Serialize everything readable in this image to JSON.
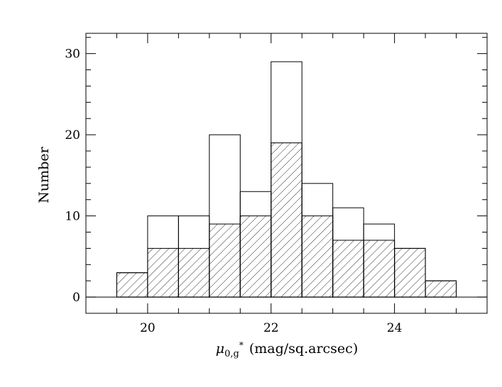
{
  "chart_data": {
    "type": "bar",
    "title": "",
    "ylabel": "Number",
    "xlabel": {
      "symbol": "μ",
      "subscript": "0,g",
      "superscript": "*",
      "units": "(mag/sq.arcsec)"
    },
    "xlim": [
      19,
      25.5
    ],
    "ylim": [
      -2,
      32.5
    ],
    "bin_width": 0.5,
    "bin_starts": [
      19.5,
      20.0,
      20.5,
      21.0,
      21.5,
      22.0,
      22.5,
      23.0,
      23.5,
      24.0,
      24.5
    ],
    "x_ticks": [
      20,
      22,
      24
    ],
    "y_ticks": [
      0,
      10,
      20,
      30
    ],
    "series": [
      {
        "fill": "none",
        "values": [
          3,
          10,
          10,
          20,
          13,
          29,
          14,
          11,
          9,
          6,
          2
        ]
      },
      {
        "fill": "hatched",
        "values": [
          3,
          6,
          6,
          9,
          10,
          19,
          10,
          7,
          7,
          6,
          2
        ]
      }
    ],
    "grid": false,
    "colors": {
      "line": "#000000",
      "hatch": "#000000",
      "background": "#ffffff"
    }
  }
}
